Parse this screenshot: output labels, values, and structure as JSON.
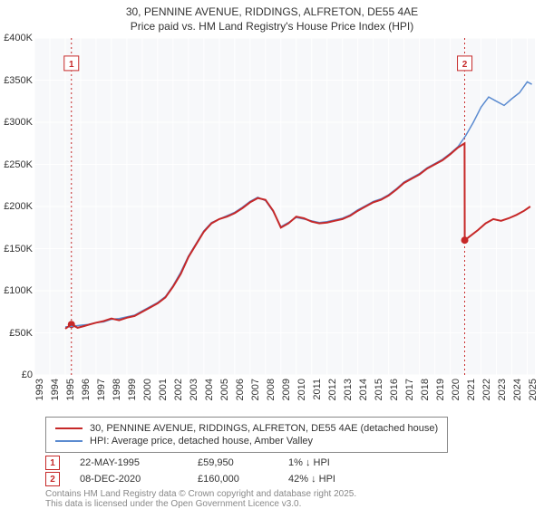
{
  "chart": {
    "title_line1": "30, PENNINE AVENUE, RIDDINGS, ALFRETON, DE55 4AE",
    "title_line2": "Price paid vs. HM Land Registry's House Price Index (HPI)",
    "background_color": "#ffffff",
    "plot_bg_color": "#f7f8fa",
    "axis_font_size": 11,
    "title_font_size": 12,
    "y_axis": {
      "min": 0,
      "max": 400000,
      "ticks": [
        0,
        50000,
        100000,
        150000,
        200000,
        250000,
        300000,
        350000,
        400000
      ],
      "tick_labels": [
        "£0",
        "£50K",
        "£100K",
        "£150K",
        "£200K",
        "£250K",
        "£300K",
        "£350K",
        "£400K"
      ],
      "grid_color": "#ffffff",
      "grid_width": 1
    },
    "x_axis": {
      "min": 1993,
      "max": 2025.5,
      "ticks": [
        1993,
        1994,
        1995,
        1996,
        1997,
        1998,
        1999,
        2000,
        2001,
        2002,
        2003,
        2004,
        2005,
        2006,
        2007,
        2008,
        2009,
        2010,
        2011,
        2012,
        2013,
        2014,
        2015,
        2016,
        2017,
        2018,
        2019,
        2020,
        2021,
        2022,
        2023,
        2024,
        2025
      ],
      "tick_labels": [
        "1993",
        "1994",
        "1995",
        "1996",
        "1997",
        "1998",
        "1999",
        "2000",
        "2001",
        "2002",
        "2003",
        "2004",
        "2005",
        "2006",
        "2007",
        "2008",
        "2009",
        "2010",
        "2011",
        "2012",
        "2013",
        "2014",
        "2015",
        "2016",
        "2017",
        "2018",
        "2019",
        "2020",
        "2021",
        "2022",
        "2023",
        "2024",
        "2025"
      ],
      "grid_color": "#ffffff",
      "grid_width": 1
    },
    "series": [
      {
        "id": "price_paid",
        "label": "30, PENNINE AVENUE, RIDDINGS, ALFRETON, DE55 4AE (detached house)",
        "color": "#c62828",
        "width": 2,
        "points": [
          [
            1995.0,
            55000
          ],
          [
            1995.4,
            59950
          ],
          [
            1995.8,
            56000
          ],
          [
            1996.2,
            58000
          ],
          [
            1996.6,
            60000
          ],
          [
            1997.0,
            62000
          ],
          [
            1997.5,
            64000
          ],
          [
            1998.0,
            67000
          ],
          [
            1998.5,
            65000
          ],
          [
            1999.0,
            68000
          ],
          [
            1999.5,
            70000
          ],
          [
            2000.0,
            75000
          ],
          [
            2000.5,
            80000
          ],
          [
            2001.0,
            85000
          ],
          [
            2001.5,
            92000
          ],
          [
            2002.0,
            105000
          ],
          [
            2002.5,
            120000
          ],
          [
            2003.0,
            140000
          ],
          [
            2003.5,
            155000
          ],
          [
            2004.0,
            170000
          ],
          [
            2004.5,
            180000
          ],
          [
            2005.0,
            185000
          ],
          [
            2005.5,
            188000
          ],
          [
            2006.0,
            192000
          ],
          [
            2006.5,
            198000
          ],
          [
            2007.0,
            205000
          ],
          [
            2007.5,
            210000
          ],
          [
            2008.0,
            208000
          ],
          [
            2008.5,
            195000
          ],
          [
            2009.0,
            175000
          ],
          [
            2009.5,
            180000
          ],
          [
            2010.0,
            188000
          ],
          [
            2010.5,
            186000
          ],
          [
            2011.0,
            182000
          ],
          [
            2011.5,
            180000
          ],
          [
            2012.0,
            181000
          ],
          [
            2012.5,
            183000
          ],
          [
            2013.0,
            185000
          ],
          [
            2013.5,
            189000
          ],
          [
            2014.0,
            195000
          ],
          [
            2014.5,
            200000
          ],
          [
            2015.0,
            205000
          ],
          [
            2015.5,
            208000
          ],
          [
            2016.0,
            213000
          ],
          [
            2016.5,
            220000
          ],
          [
            2017.0,
            228000
          ],
          [
            2017.5,
            233000
          ],
          [
            2018.0,
            238000
          ],
          [
            2018.5,
            245000
          ],
          [
            2019.0,
            250000
          ],
          [
            2019.5,
            255000
          ],
          [
            2020.0,
            262000
          ],
          [
            2020.5,
            270000
          ],
          [
            2020.93,
            275000
          ],
          [
            2020.94,
            160000
          ],
          [
            2021.3,
            165000
          ],
          [
            2021.8,
            172000
          ],
          [
            2022.3,
            180000
          ],
          [
            2022.8,
            185000
          ],
          [
            2023.3,
            183000
          ],
          [
            2023.8,
            186000
          ],
          [
            2024.3,
            190000
          ],
          [
            2024.8,
            195000
          ],
          [
            2025.2,
            200000
          ]
        ]
      },
      {
        "id": "hpi",
        "label": "HPI: Average price, detached house, Amber Valley",
        "color": "#5b8bd0",
        "width": 1.5,
        "points": [
          [
            1995.0,
            57000
          ],
          [
            1995.5,
            58000
          ],
          [
            1996.0,
            59000
          ],
          [
            1996.5,
            60000
          ],
          [
            1997.0,
            62000
          ],
          [
            1997.5,
            63000
          ],
          [
            1998.0,
            66000
          ],
          [
            1998.5,
            67000
          ],
          [
            1999.0,
            69000
          ],
          [
            1999.5,
            71000
          ],
          [
            2000.0,
            76000
          ],
          [
            2000.5,
            81000
          ],
          [
            2001.0,
            86000
          ],
          [
            2001.5,
            93000
          ],
          [
            2002.0,
            106000
          ],
          [
            2002.5,
            122000
          ],
          [
            2003.0,
            141000
          ],
          [
            2003.5,
            156000
          ],
          [
            2004.0,
            171000
          ],
          [
            2004.5,
            181000
          ],
          [
            2005.0,
            185000
          ],
          [
            2005.5,
            189000
          ],
          [
            2006.0,
            193000
          ],
          [
            2006.5,
            199000
          ],
          [
            2007.0,
            206000
          ],
          [
            2007.5,
            211000
          ],
          [
            2008.0,
            207000
          ],
          [
            2008.5,
            194000
          ],
          [
            2009.0,
            176000
          ],
          [
            2009.5,
            181000
          ],
          [
            2010.0,
            187000
          ],
          [
            2010.5,
            185000
          ],
          [
            2011.0,
            183000
          ],
          [
            2011.5,
            181000
          ],
          [
            2012.0,
            182000
          ],
          [
            2012.5,
            184000
          ],
          [
            2013.0,
            186000
          ],
          [
            2013.5,
            190000
          ],
          [
            2014.0,
            196000
          ],
          [
            2014.5,
            201000
          ],
          [
            2015.0,
            206000
          ],
          [
            2015.5,
            209000
          ],
          [
            2016.0,
            214000
          ],
          [
            2016.5,
            221000
          ],
          [
            2017.0,
            229000
          ],
          [
            2017.5,
            234000
          ],
          [
            2018.0,
            239000
          ],
          [
            2018.5,
            246000
          ],
          [
            2019.0,
            251000
          ],
          [
            2019.5,
            256000
          ],
          [
            2020.0,
            263000
          ],
          [
            2020.5,
            271000
          ],
          [
            2021.0,
            284000
          ],
          [
            2021.5,
            300000
          ],
          [
            2022.0,
            318000
          ],
          [
            2022.5,
            330000
          ],
          [
            2023.0,
            325000
          ],
          [
            2023.5,
            320000
          ],
          [
            2024.0,
            328000
          ],
          [
            2024.5,
            335000
          ],
          [
            2025.0,
            348000
          ],
          [
            2025.3,
            345000
          ]
        ]
      }
    ],
    "markers": [
      {
        "n": "1",
        "year": 1995.4,
        "dot_y": 59950,
        "label_y": 370000,
        "line_color": "#c62828",
        "box_color": "#c62828"
      },
      {
        "n": "2",
        "year": 2020.94,
        "dot_y": 160000,
        "label_y": 370000,
        "line_color": "#c62828",
        "box_color": "#c62828"
      }
    ]
  },
  "legend": {
    "items": [
      {
        "color": "#c62828",
        "width": 2
      },
      {
        "color": "#5b8bd0",
        "width": 1.5
      }
    ]
  },
  "sales": [
    {
      "n": "1",
      "date": "22-MAY-1995",
      "price": "£59,950",
      "pct": "1% ↓ HPI"
    },
    {
      "n": "2",
      "date": "08-DEC-2020",
      "price": "£160,000",
      "pct": "42% ↓ HPI"
    }
  ],
  "footnote": {
    "line1": "Contains HM Land Registry data © Crown copyright and database right 2025.",
    "line2": "This data is licensed under the Open Government Licence v3.0."
  }
}
